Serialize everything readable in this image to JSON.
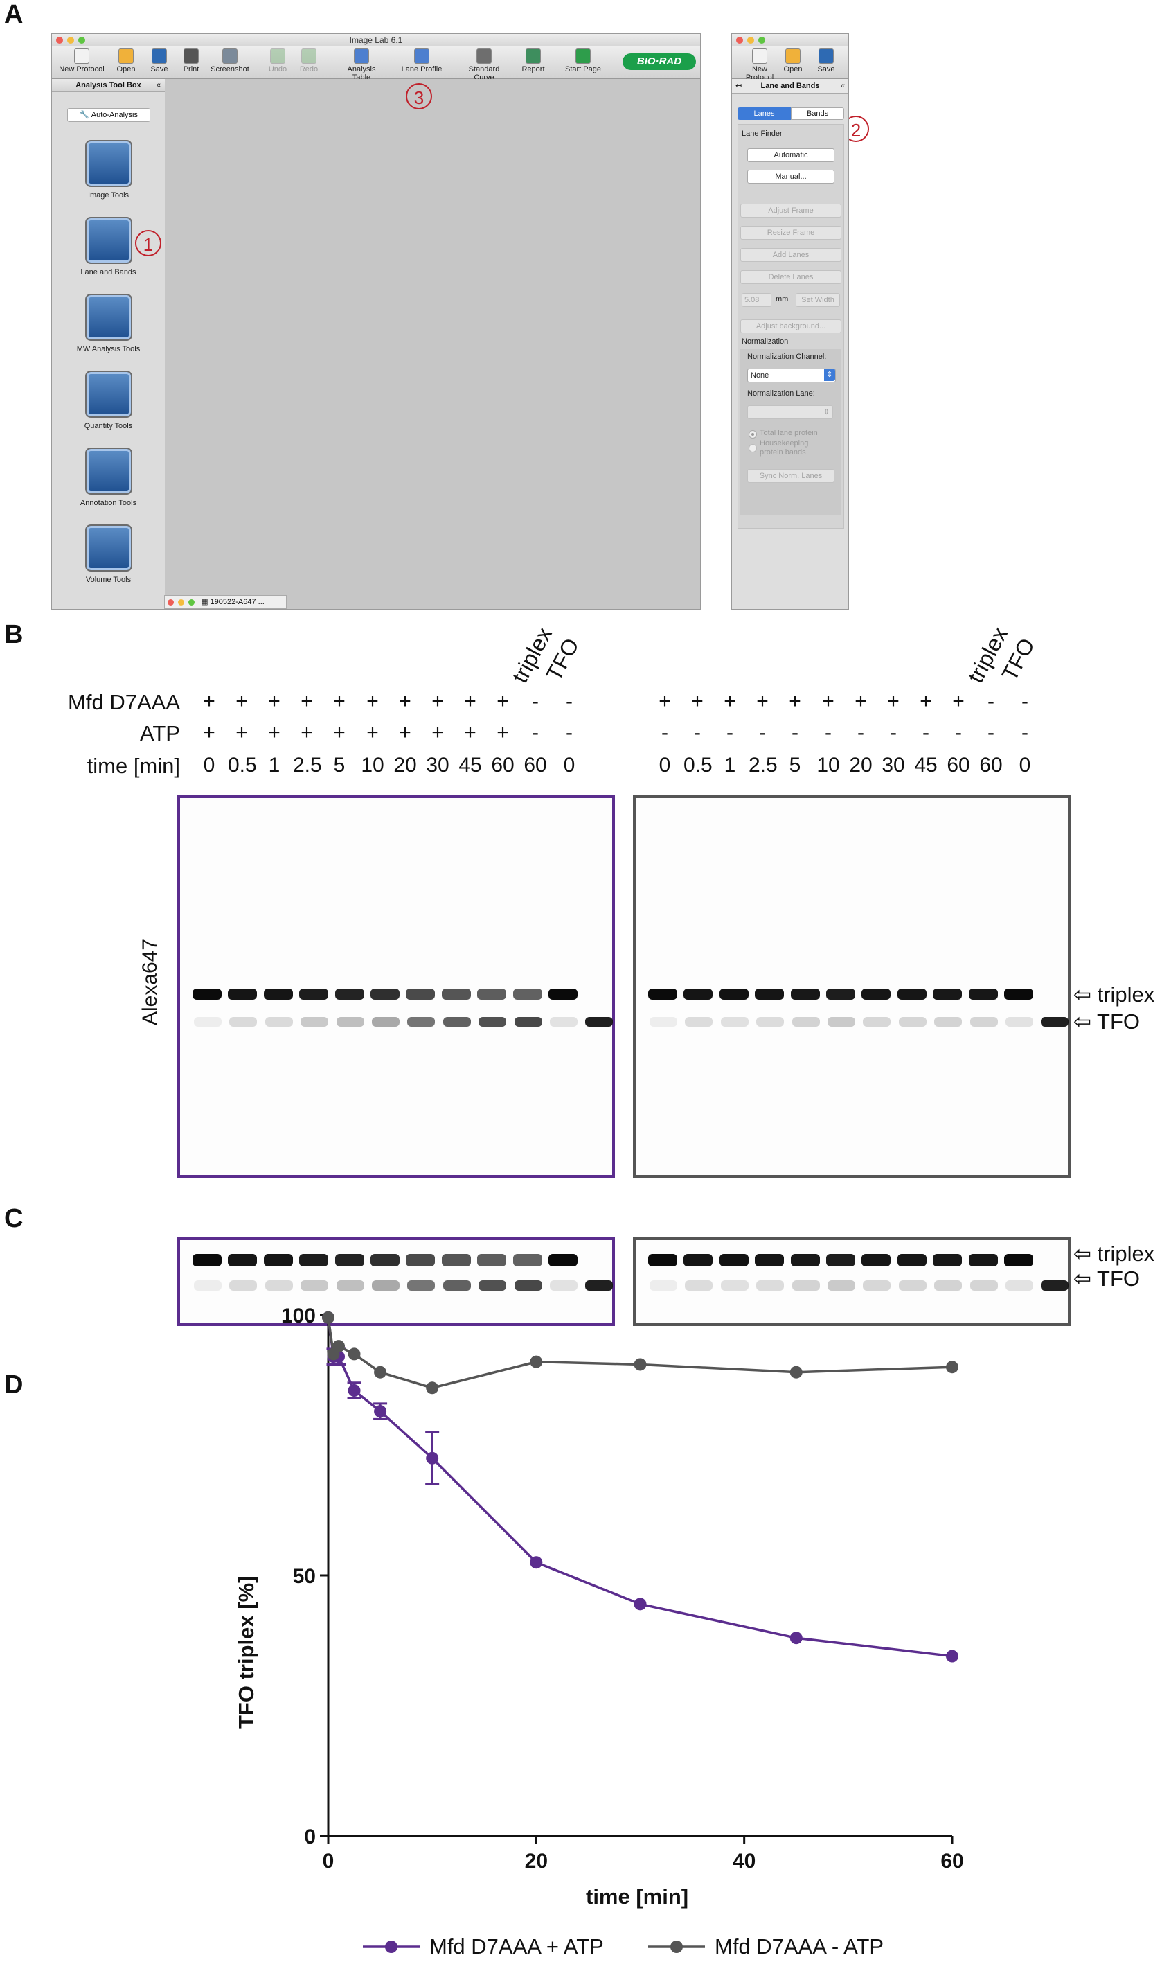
{
  "panels": {
    "a": "A",
    "b": "B",
    "c": "C",
    "d": "D"
  },
  "window": {
    "title": "Image Lab 6.1",
    "toolbar": [
      {
        "label": "New Protocol",
        "icon": "document-icon",
        "enabled": true
      },
      {
        "label": "Open",
        "icon": "folder-icon",
        "enabled": true
      },
      {
        "label": "Save",
        "icon": "floppy-icon",
        "enabled": true
      },
      {
        "label": "Print",
        "icon": "printer-icon",
        "enabled": true
      },
      {
        "label": "Screenshot",
        "icon": "camera-icon",
        "enabled": true
      },
      {
        "label": "Undo",
        "icon": "undo-icon",
        "enabled": false
      },
      {
        "label": "Redo",
        "icon": "redo-icon",
        "enabled": false
      },
      {
        "label": "Analysis Table",
        "icon": "table-icon",
        "enabled": true
      },
      {
        "label": "Lane Profile",
        "icon": "profile-icon",
        "enabled": true
      },
      {
        "label": "Standard Curve",
        "icon": "curve-icon",
        "enabled": true
      },
      {
        "label": "Report",
        "icon": "report-icon",
        "enabled": true
      },
      {
        "label": "Start Page",
        "icon": "start-page-icon",
        "enabled": true
      }
    ],
    "brand": "BIO·RAD",
    "toolbox_title": "Analysis Tool Box",
    "toolbox_collapse": "«",
    "auto_analysis": "Auto-Analysis",
    "tools": [
      "Image Tools",
      "Lane and Bands",
      "MW Analysis Tools",
      "Quantity Tools",
      "Annotation Tools",
      "Volume Tools"
    ],
    "status_file": "190522-A647 ...",
    "callouts": [
      "1",
      "2",
      "3"
    ]
  },
  "side_panel": {
    "toolbar": [
      "New Protocol",
      "Open",
      "Save"
    ],
    "title": "Lane and Bands",
    "back": "↤",
    "collapse": "«",
    "tabs": [
      "Lanes",
      "Bands"
    ],
    "lane_finder": "Lane Finder",
    "automatic": "Automatic",
    "manual": "Manual...",
    "adjust_frame": "Adjust Frame",
    "resize_frame": "Resize Frame",
    "add_lanes": "Add Lanes",
    "delete_lanes": "Delete Lanes",
    "width_value": "5.08",
    "width_unit": "mm",
    "set_width": "Set Width",
    "adjust_background": "Adjust background...",
    "normalization": "Normalization",
    "norm_channel_label": "Normalization Channel:",
    "norm_channel_value": "None",
    "norm_lane_label": "Normalization Lane:",
    "radio_total": "Total lane protein",
    "radio_housekeeping_1": "Housekeeping",
    "radio_housekeeping_2": "protein bands",
    "sync": "Sync Norm. Lanes"
  },
  "gel_header": {
    "row_labels": [
      "Mfd D7AAA",
      "ATP",
      "time [min]"
    ],
    "extra_lanes": [
      "triplex",
      "TFO"
    ],
    "left": {
      "mfd": [
        "+",
        "+",
        "+",
        "+",
        "+",
        "+",
        "+",
        "+",
        "+",
        "+",
        "-",
        "-"
      ],
      "atp": [
        "+",
        "+",
        "+",
        "+",
        "+",
        "+",
        "+",
        "+",
        "+",
        "+",
        "-",
        "-"
      ],
      "time": [
        "0",
        "0.5",
        "1",
        "2.5",
        "5",
        "10",
        "20",
        "30",
        "45",
        "60",
        "60",
        "0"
      ]
    },
    "right": {
      "mfd": [
        "+",
        "+",
        "+",
        "+",
        "+",
        "+",
        "+",
        "+",
        "+",
        "+",
        "-",
        "-"
      ],
      "atp": [
        "-",
        "-",
        "-",
        "-",
        "-",
        "-",
        "-",
        "-",
        "-",
        "-",
        "-",
        "-"
      ],
      "time": [
        "0",
        "0.5",
        "1",
        "2.5",
        "5",
        "10",
        "20",
        "30",
        "45",
        "60",
        "60",
        "0"
      ]
    },
    "channel": "Alexa647",
    "markers": [
      "⇦ triplex",
      "⇦ TFO"
    ],
    "colors": {
      "left_frame": "#5b2d8e",
      "right_frame": "#555555"
    }
  },
  "chart_data": {
    "type": "line",
    "xlabel": "time [min]",
    "ylabel": "TFO triplex [%]",
    "xlim": [
      0,
      60
    ],
    "ylim": [
      0,
      100
    ],
    "xticks": [
      "0",
      "20",
      "40",
      "60"
    ],
    "yticks": [
      "0",
      "50",
      "100"
    ],
    "x": [
      0,
      0.5,
      1,
      2.5,
      5,
      10,
      20,
      30,
      45,
      60
    ],
    "series": [
      {
        "name": "Mfd D7AAA + ATP",
        "color": "#5b2d8e",
        "values": [
          99.5,
          92,
          92,
          85.5,
          81.5,
          72.5,
          52.5,
          44.5,
          38,
          34.5
        ],
        "errors": [
          0,
          1.5,
          1.5,
          1.5,
          1.5,
          5,
          0,
          0,
          0,
          0
        ]
      },
      {
        "name": "Mfd D7AAA - ATP",
        "color": "#555555",
        "values": [
          99.5,
          92.5,
          94,
          92.5,
          89,
          86,
          91,
          90.5,
          89,
          90
        ],
        "errors": [
          0,
          0,
          0,
          0,
          0,
          0,
          0,
          0,
          0,
          0
        ]
      }
    ],
    "legend": "bottom"
  }
}
